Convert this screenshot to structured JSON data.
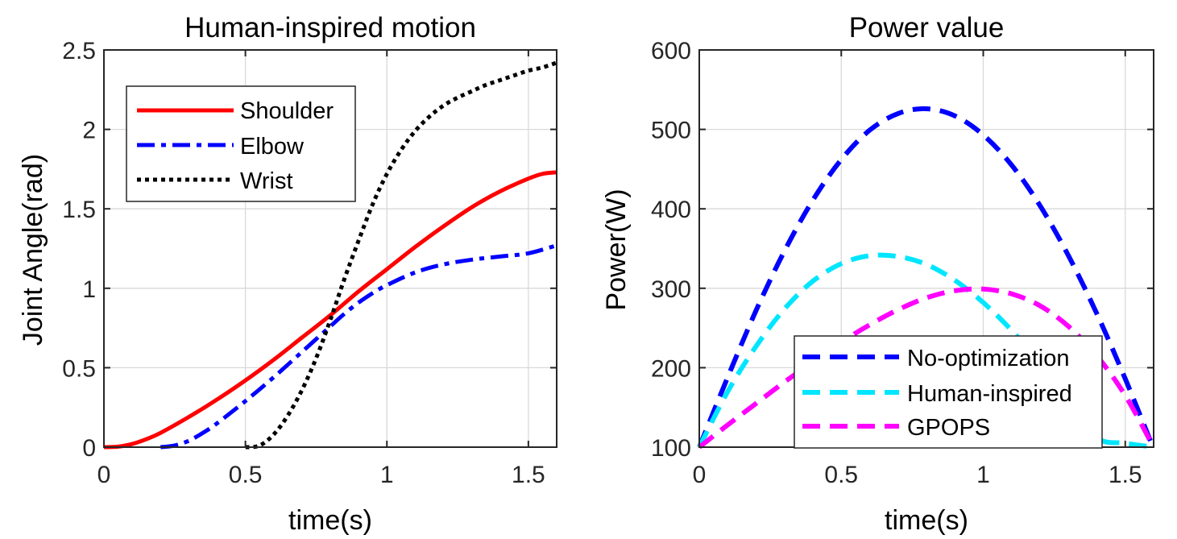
{
  "chart_data": [
    {
      "type": "line",
      "title": "Human-inspired motion",
      "xlabel": "time(s)",
      "ylabel": "Joint Angle(rad)",
      "xlim": [
        0,
        1.6
      ],
      "ylim": [
        0,
        2.5
      ],
      "xticks": [
        0,
        0.5,
        1,
        1.5
      ],
      "xtick_labels": [
        "0",
        "0.5",
        "1",
        "1.5"
      ],
      "yticks": [
        0,
        0.5,
        1,
        1.5,
        2,
        2.5
      ],
      "ytick_labels": [
        "0",
        "0.5",
        "1",
        "1.5",
        "2",
        "2.5"
      ],
      "grid": true,
      "legend_position": "top-left",
      "series": [
        {
          "name": "Shoulder",
          "color": "#ff0000",
          "style": "solid",
          "x": [
            0,
            0.05,
            0.1,
            0.15,
            0.2,
            0.3,
            0.4,
            0.5,
            0.6,
            0.7,
            0.8,
            0.9,
            1.0,
            1.1,
            1.2,
            1.3,
            1.4,
            1.5,
            1.55,
            1.6
          ],
          "y": [
            0,
            0.003,
            0.02,
            0.05,
            0.09,
            0.19,
            0.3,
            0.42,
            0.55,
            0.69,
            0.83,
            0.98,
            1.12,
            1.26,
            1.39,
            1.51,
            1.61,
            1.69,
            1.72,
            1.73
          ]
        },
        {
          "name": "Elbow",
          "color": "#0000ff",
          "style": "dashdot",
          "x": [
            0.2,
            0.25,
            0.3,
            0.35,
            0.4,
            0.5,
            0.6,
            0.7,
            0.8,
            0.85,
            0.9,
            0.95,
            1.0,
            1.1,
            1.2,
            1.3,
            1.4,
            1.5,
            1.6
          ],
          "y": [
            0,
            0.01,
            0.04,
            0.09,
            0.15,
            0.29,
            0.44,
            0.6,
            0.76,
            0.84,
            0.91,
            0.97,
            1.02,
            1.1,
            1.15,
            1.18,
            1.2,
            1.22,
            1.27
          ]
        },
        {
          "name": "Wrist",
          "color": "#000000",
          "style": "dotted",
          "x": [
            0.5,
            0.55,
            0.6,
            0.65,
            0.7,
            0.75,
            0.8,
            0.85,
            0.9,
            0.95,
            1.0,
            1.05,
            1.1,
            1.15,
            1.2,
            1.25,
            1.3,
            1.35,
            1.4,
            1.45,
            1.5,
            1.55,
            1.6
          ],
          "y": [
            0,
            0.01,
            0.08,
            0.2,
            0.36,
            0.56,
            0.8,
            1.06,
            1.3,
            1.53,
            1.72,
            1.87,
            1.99,
            2.08,
            2.15,
            2.2,
            2.24,
            2.28,
            2.31,
            2.34,
            2.37,
            2.39,
            2.42
          ]
        }
      ]
    },
    {
      "type": "line",
      "title": "Power value",
      "xlabel": "time(s)",
      "ylabel": "Power(W)",
      "xlim": [
        0,
        1.6
      ],
      "ylim": [
        100,
        600
      ],
      "xticks": [
        0,
        0.5,
        1,
        1.5
      ],
      "xtick_labels": [
        "0",
        "0.5",
        "1",
        "1.5"
      ],
      "yticks": [
        100,
        200,
        300,
        400,
        500,
        600
      ],
      "ytick_labels": [
        "100",
        "200",
        "300",
        "400",
        "500",
        "600"
      ],
      "grid": true,
      "legend_position": "bottom-right",
      "series": [
        {
          "name": "No-optimization",
          "color": "#0000ff",
          "style": "dashed",
          "x": [
            0,
            0.1,
            0.2,
            0.3,
            0.4,
            0.5,
            0.6,
            0.7,
            0.8,
            0.9,
            1.0,
            1.1,
            1.2,
            1.3,
            1.4,
            1.5,
            1.6
          ],
          "y": [
            100,
            188,
            272,
            347,
            411,
            462,
            499,
            520,
            526,
            517,
            493,
            455,
            404,
            341,
            268,
            186,
            98
          ]
        },
        {
          "name": "Human-inspired",
          "color": "#00e6ff",
          "style": "dashed",
          "x": [
            0,
            0.1,
            0.2,
            0.3,
            0.4,
            0.5,
            0.6,
            0.7,
            0.8,
            0.9,
            1.0,
            1.1,
            1.2,
            1.3,
            1.4,
            1.5,
            1.6
          ],
          "y": [
            100,
            170,
            227,
            274,
            309,
            331,
            341,
            340,
            330,
            310,
            282,
            247,
            206,
            161,
            112,
            105,
            100
          ]
        },
        {
          "name": "GPOPS",
          "color": "#ff00ff",
          "style": "dashed",
          "x": [
            0,
            0.1,
            0.2,
            0.3,
            0.4,
            0.5,
            0.6,
            0.7,
            0.8,
            0.9,
            1.0,
            1.1,
            1.2,
            1.3,
            1.4,
            1.5,
            1.6
          ],
          "y": [
            100,
            128,
            155,
            182,
            207,
            232,
            254,
            273,
            288,
            297,
            299,
            293,
            278,
            252,
            215,
            165,
            100
          ]
        }
      ]
    }
  ]
}
